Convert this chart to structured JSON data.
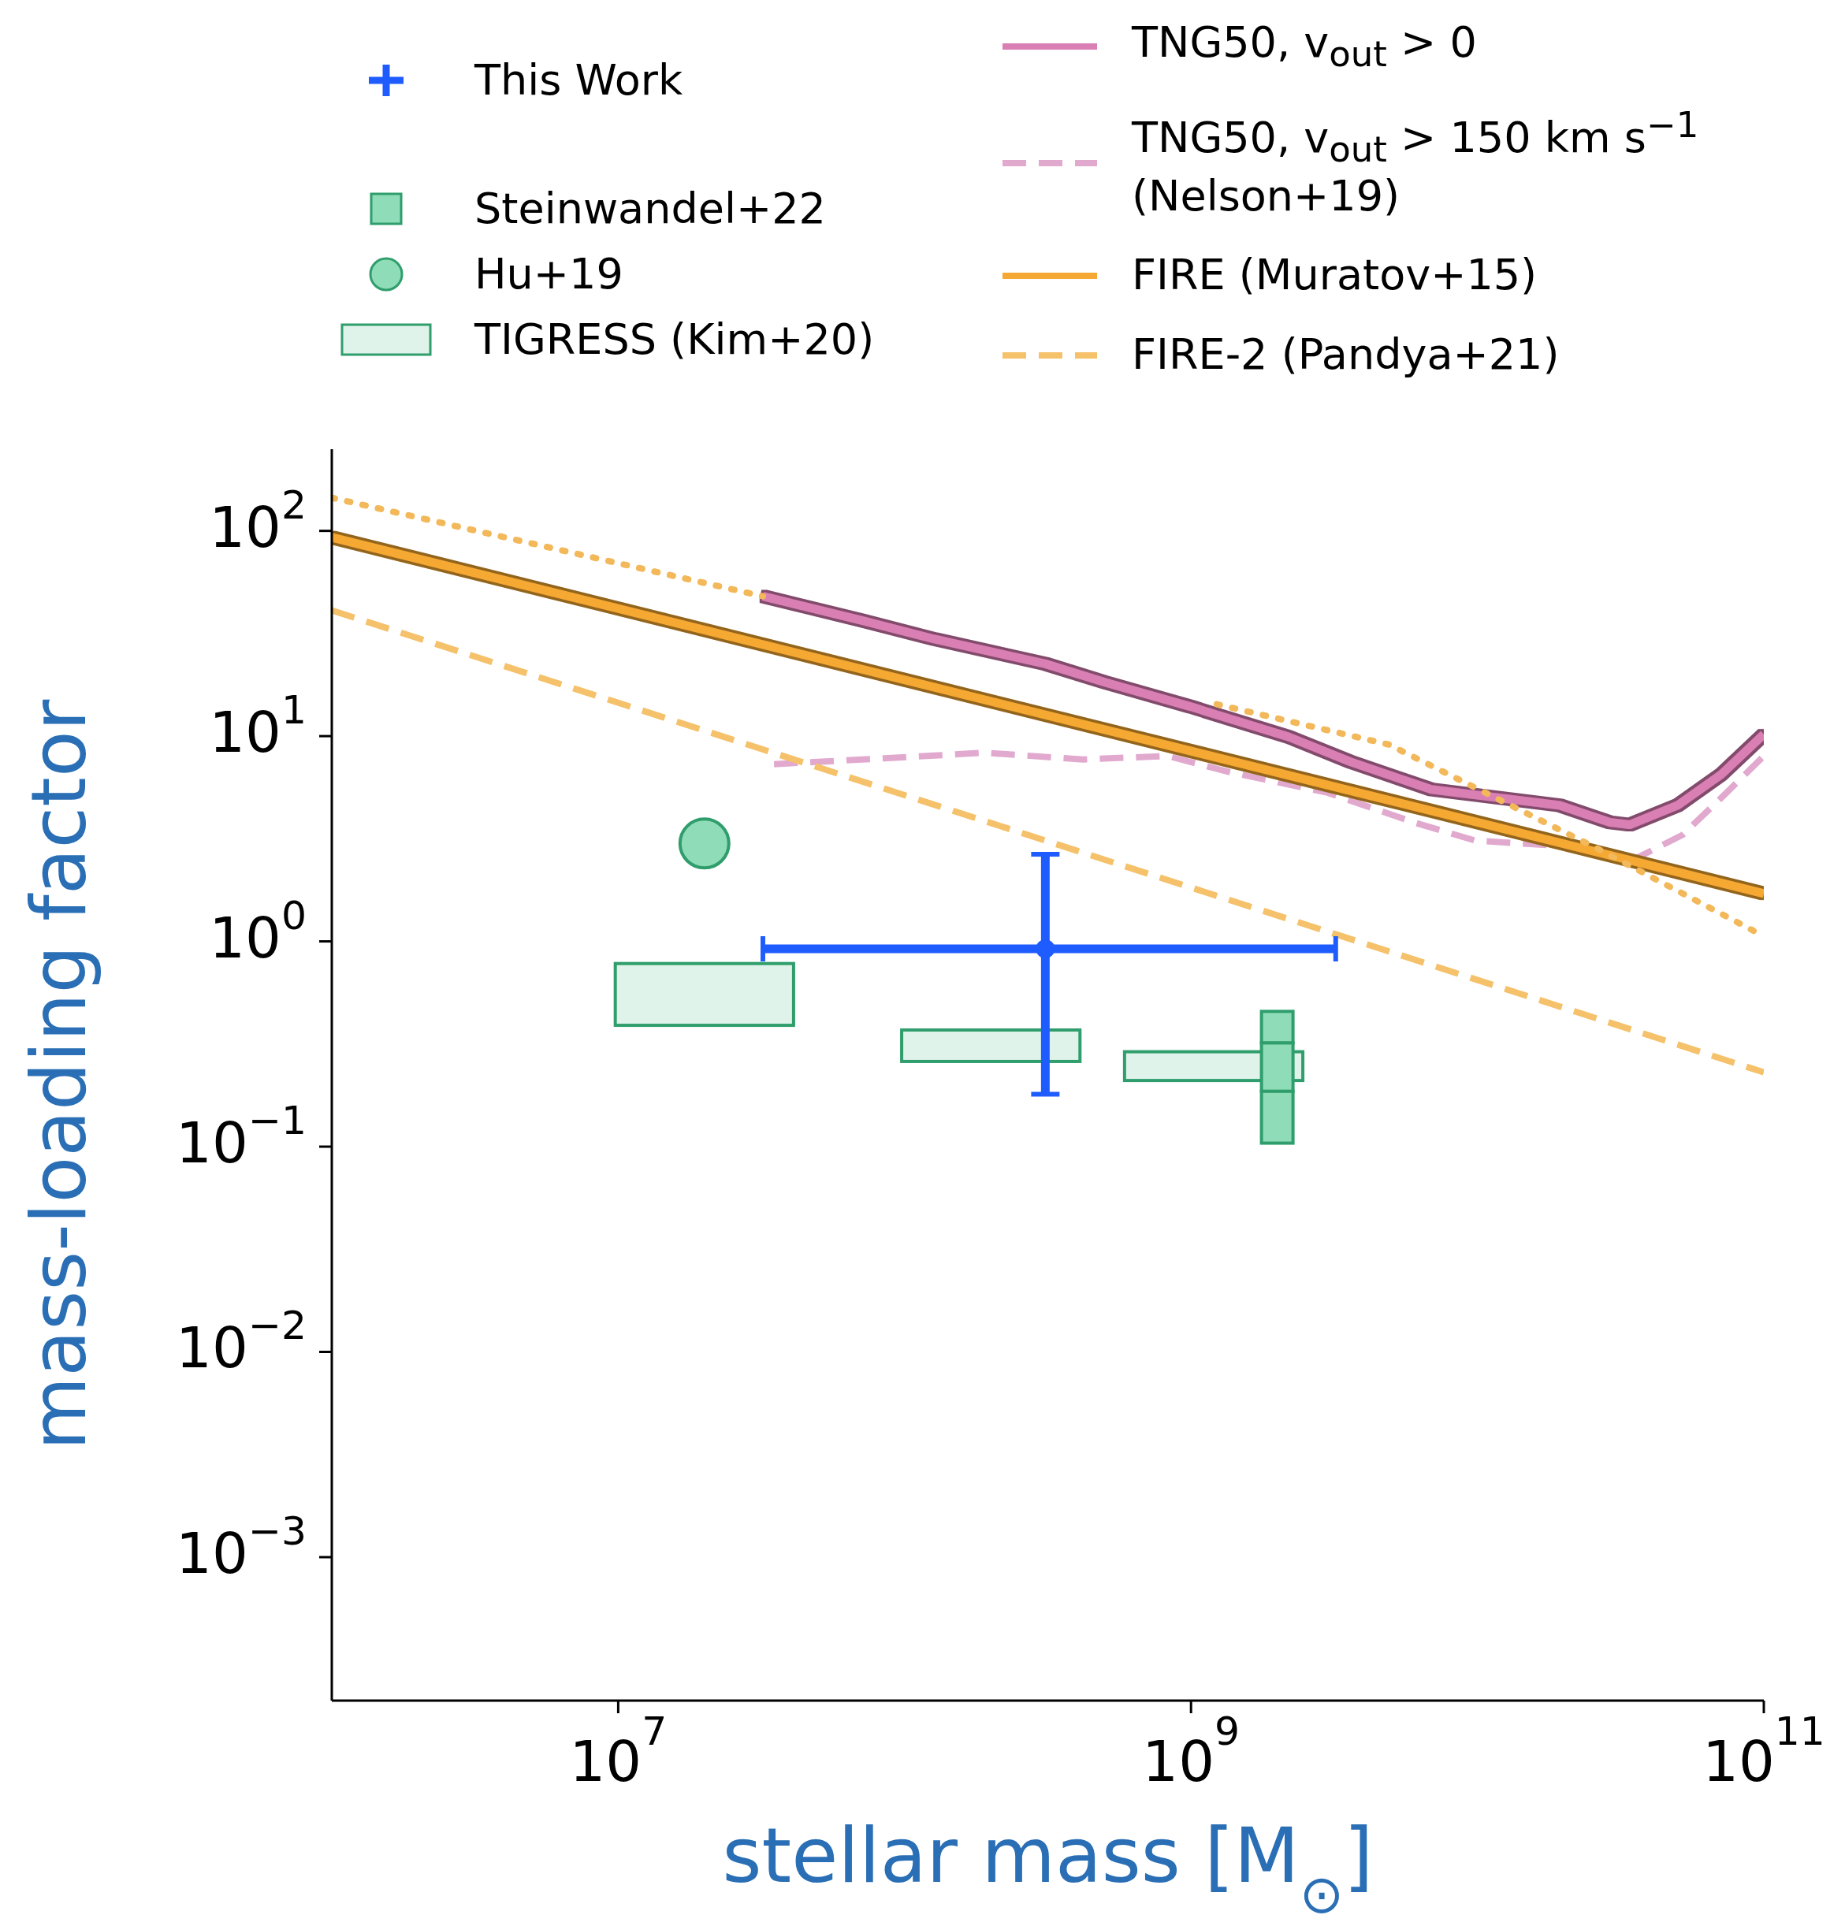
{
  "chart_data": {
    "type": "line",
    "xlabel": "stellar mass [M$_{⊙}$]",
    "ylabel": "mass-loading factor",
    "log": "xy",
    "xlim": [
      1000000,
      100000000000
    ],
    "xticks": [
      {
        "value": 10000000,
        "label": "10$^{7}$"
      },
      {
        "value": 1000000000,
        "label": "10$^{9}$"
      },
      {
        "value": 100000000000,
        "label": "10$^{11}$"
      }
    ],
    "ylim": [
      0.0002,
      250
    ],
    "yticks": [
      {
        "value": 0.001,
        "label": "10$^{−3}$"
      },
      {
        "value": 0.01,
        "label": "10$^{−2}$"
      },
      {
        "value": 0.1,
        "label": "10$^{−1}$"
      },
      {
        "value": 1,
        "label": "10$^{0}$"
      },
      {
        "value": 10,
        "label": "10$^{1}$"
      },
      {
        "value": 100,
        "label": "10$^{2}$"
      }
    ],
    "legend": "top",
    "series": [
      {
        "name": "This Work",
        "type": "scatter",
        "marker": "circle",
        "color": "#1f5cff",
        "x": [
          310000000
        ],
        "values": [
          0.92
        ],
        "errors": [
          [
            0.18,
            2.66
          ]
        ],
        "xerrors": [
          [
            32000000,
            3200000000
          ]
        ]
      },
      {
        "name": "Steinwandel+22",
        "type": "bar",
        "color": "#8fdcb8",
        "x": [
          2000000000
        ],
        "base": [
          0.32
        ],
        "values": [
          0.136
        ]
      },
      {
        "type": "bar",
        "color": "#8fdcb8",
        "x": [
          2000000000
        ],
        "base": [
          0.186
        ],
        "values": [
          0.134
        ]
      },
      {
        "type": "bar",
        "color": "#8fdcb8",
        "x": [
          2000000000
        ],
        "base": [
          0.104
        ],
        "values": [
          0.082
        ]
      },
      {
        "name": "Hu+19",
        "type": "scatter",
        "marker": "circle",
        "color": "#8fdcb8",
        "x": [
          20000000
        ],
        "values": [
          3.0
        ]
      },
      {
        "name": "TIGRESS (Kim+20)",
        "type": "bar",
        "color": "#dff3ea",
        "x": [
          20000000,
          200000000,
          1200000000
        ],
        "base": [
          0.39,
          0.26,
          0.21
        ],
        "values": [
          0.39,
          0.11,
          0.08
        ]
      },
      {
        "name": "TNG50, v$_{out}$ > 0",
        "line_style": "solid",
        "color": "#d97fb4",
        "x": [
          32000000,
          71000000,
          127000000,
          310000000,
          500000000,
          1000000000,
          2200000000,
          3600000000,
          6900000000,
          19400000000,
          29000000000,
          34000000000,
          50000000000,
          71000000000,
          100000000000
        ],
        "values": [
          48,
          36.6,
          29.7,
          22.5,
          18.3,
          13.9,
          9.9,
          7.5,
          5.5,
          4.6,
          3.8,
          3.7,
          4.6,
          6.5,
          10.2
        ]
      },
      {
        "name": "TNG50, v$_{out}$ > 150 km s$^{−1}$ (Nelson+19)",
        "line_style": "dashed",
        "color": "#e2a9cf",
        "x": [
          35000000,
          85000000,
          190000000,
          420000000,
          830000000,
          1350000000,
          3000000000,
          6000000000,
          9800000000,
          21000000000,
          35000000000,
          52000000000,
          71000000000,
          100000000000
        ],
        "values": [
          7.3,
          7.8,
          8.3,
          7.7,
          8.0,
          6.7,
          5.3,
          3.8,
          3.1,
          2.9,
          2.5,
          3.3,
          5.0,
          8.0
        ]
      },
      {
        "name": "FIRE (Muratov+15)",
        "line_style": "solid",
        "color": "#f5a833",
        "x": [
          1000000,
          100000000000
        ],
        "values": [
          93,
          1.71
        ]
      },
      {
        "name": "FIRE-2 (Pandya+21)",
        "line_style": "dashed",
        "color": "#f5c16a",
        "x": [
          1000000,
          100000000000
        ],
        "values": [
          41,
          0.23
        ]
      },
      {
        "line_style": "dotted",
        "color": "#f2b85a",
        "x": [
          1000000,
          32000000,
          200000000,
          1230000000,
          4900000000,
          6600000000,
          26000000000,
          100000000000
        ],
        "values": [
          145,
          48,
          null,
          14.3,
          9.1,
          7.4,
          2.85,
          1.06
        ]
      }
    ]
  }
}
